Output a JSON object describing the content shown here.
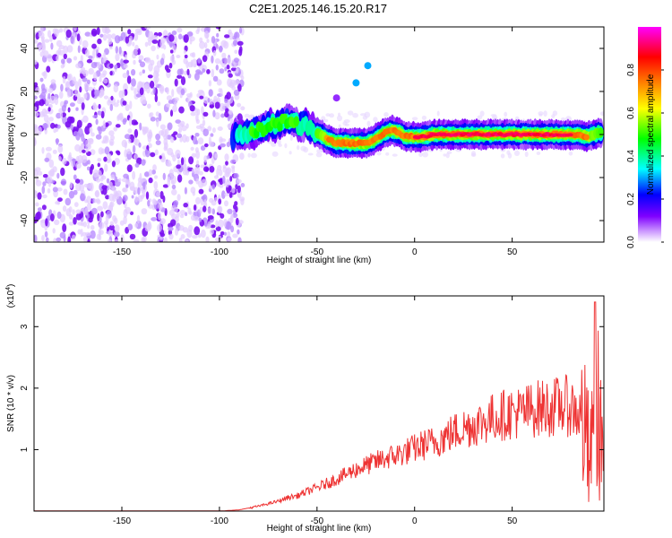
{
  "title": "C2E1.2025.146.15.20.R17",
  "chart_data": [
    {
      "type": "heatmap",
      "xlabel": "Height of straight line (km)",
      "ylabel": "Frequency (Hz)",
      "xlim": [
        -195,
        97
      ],
      "ylim": [
        -50,
        50
      ],
      "x_ticks": [
        -150,
        -100,
        -50,
        0,
        50
      ],
      "y_ticks": [
        -40,
        -20,
        0,
        20,
        40
      ],
      "colorbar": {
        "label": "Normalized spectral amplitude",
        "range": [
          0,
          1
        ],
        "ticks": [
          0.0,
          0.2,
          0.4,
          0.6,
          0.8
        ],
        "tick_labels": [
          "0.0",
          "0.2",
          "0.4",
          "0.6",
          "0.8"
        ],
        "colors": [
          "#ffffff",
          "#cc99ff",
          "#7f00ff",
          "#0000ff",
          "#00ffff",
          "#00ff00",
          "#ffff00",
          "#ff8000",
          "#ff0000",
          "#ff00ff"
        ]
      },
      "noise_region_x": [
        -195,
        -88
      ],
      "ridge": [
        {
          "x": -93,
          "y": -1,
          "v": 0.3
        },
        {
          "x": -88,
          "y": 0,
          "v": 0.4
        },
        {
          "x": -84,
          "y": 1,
          "v": 0.5
        },
        {
          "x": -80,
          "y": 2,
          "v": 0.5
        },
        {
          "x": -75,
          "y": 4,
          "v": 0.5
        },
        {
          "x": -70,
          "y": 5,
          "v": 0.5
        },
        {
          "x": -65,
          "y": 6,
          "v": 0.5
        },
        {
          "x": -60,
          "y": 5,
          "v": 0.5
        },
        {
          "x": -55,
          "y": 4,
          "v": 0.45
        },
        {
          "x": -50,
          "y": 1,
          "v": 0.5
        },
        {
          "x": -45,
          "y": -2,
          "v": 0.7
        },
        {
          "x": -40,
          "y": -4,
          "v": 0.85
        },
        {
          "x": -35,
          "y": -4,
          "v": 0.85
        },
        {
          "x": -30,
          "y": -4,
          "v": 0.85
        },
        {
          "x": -25,
          "y": -4,
          "v": 0.8
        },
        {
          "x": -20,
          "y": -2,
          "v": 0.75
        },
        {
          "x": -15,
          "y": 1,
          "v": 0.75
        },
        {
          "x": -12,
          "y": 2,
          "v": 0.75
        },
        {
          "x": -8,
          "y": 1,
          "v": 0.8
        },
        {
          "x": -5,
          "y": -1,
          "v": 0.85
        },
        {
          "x": 0,
          "y": -1,
          "v": 0.9
        },
        {
          "x": 5,
          "y": -1,
          "v": 0.9
        },
        {
          "x": 10,
          "y": 0,
          "v": 0.9
        },
        {
          "x": 20,
          "y": 0,
          "v": 0.9
        },
        {
          "x": 30,
          "y": 0,
          "v": 0.9
        },
        {
          "x": 40,
          "y": 0,
          "v": 0.9
        },
        {
          "x": 50,
          "y": 0,
          "v": 0.9
        },
        {
          "x": 60,
          "y": 0,
          "v": 0.9
        },
        {
          "x": 70,
          "y": 0,
          "v": 0.9
        },
        {
          "x": 80,
          "y": 0,
          "v": 0.9
        },
        {
          "x": 85,
          "y": 0,
          "v": 0.85
        },
        {
          "x": 88,
          "y": -1,
          "v": 0.75
        },
        {
          "x": 92,
          "y": 0,
          "v": 0.6
        },
        {
          "x": 96,
          "y": 1,
          "v": 0.5
        }
      ],
      "isolated_blobs": [
        {
          "x": -30,
          "y": 24,
          "v": 0.3
        },
        {
          "x": -24,
          "y": 32,
          "v": 0.3
        },
        {
          "x": -40,
          "y": 17,
          "v": 0.1
        }
      ]
    },
    {
      "type": "line",
      "xlabel": "Height of straight line (km)",
      "ylabel": "SNR (10 * v/v)",
      "y_multiplier": "(x10",
      "y_multiplier_exp": "4",
      "y_multiplier_close": ")",
      "xlim": [
        -195,
        97
      ],
      "ylim": [
        0,
        3.5
      ],
      "x_ticks": [
        -150,
        -100,
        -50,
        0,
        50
      ],
      "y_ticks": [
        1,
        2,
        3
      ],
      "line_color": "#ee3333",
      "series": [
        {
          "x": [
            -195,
            -150,
            -100,
            -90,
            -80,
            -75,
            -70,
            -65,
            -60,
            -55,
            -50,
            -45,
            -40,
            -35,
            -30,
            -25,
            -20,
            -15,
            -10,
            -5,
            0,
            5,
            10,
            15,
            20,
            25,
            30,
            35,
            40,
            45,
            50,
            55,
            60,
            65,
            70,
            75,
            80,
            85,
            88,
            90,
            92,
            94,
            96,
            97
          ],
          "values": [
            0.0,
            0.0,
            0.0,
            0.02,
            0.08,
            0.12,
            0.16,
            0.22,
            0.25,
            0.32,
            0.38,
            0.45,
            0.52,
            0.6,
            0.68,
            0.74,
            0.8,
            0.86,
            0.9,
            0.96,
            1.02,
            1.08,
            1.12,
            1.2,
            1.28,
            1.35,
            1.4,
            1.45,
            1.52,
            1.56,
            1.6,
            1.6,
            1.65,
            1.68,
            1.68,
            1.72,
            1.7,
            1.55,
            1.2,
            0.9,
            1.3,
            1.6,
            1.2,
            1.0
          ]
        }
      ]
    }
  ]
}
